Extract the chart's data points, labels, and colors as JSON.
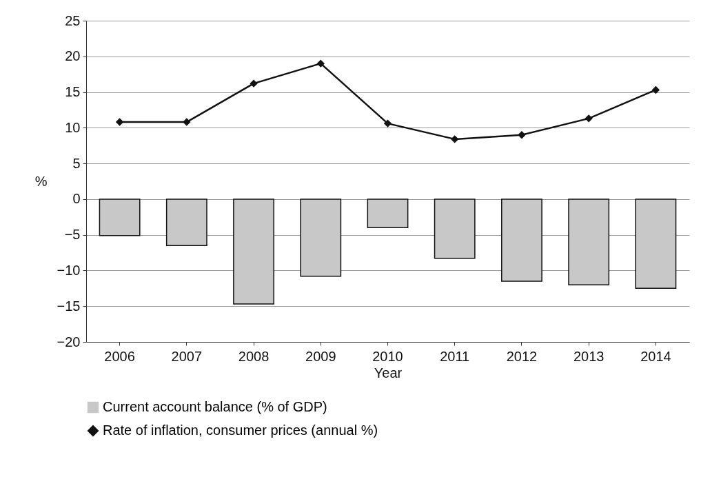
{
  "chart_data": {
    "type": "bar",
    "xlabel": "Year",
    "ylabel": "%",
    "categories": [
      "2006",
      "2007",
      "2008",
      "2009",
      "2010",
      "2011",
      "2012",
      "2013",
      "2014"
    ],
    "series": [
      {
        "name": "Current account balance (% of GDP)",
        "color": "#c8c8c8",
        "values": [
          -5.1,
          -6.5,
          -14.7,
          -10.8,
          -4.0,
          -8.3,
          -11.5,
          -12.0,
          -12.5
        ]
      },
      {
        "name": "Rate of inflation, consumer prices (annual %)",
        "type": "line",
        "color": "#111111",
        "values": [
          10.8,
          10.8,
          16.2,
          19.0,
          10.6,
          8.4,
          9.0,
          11.3,
          15.3
        ]
      }
    ],
    "ylim": [
      -20,
      25
    ],
    "yticks": [
      -20,
      -15,
      -10,
      -5,
      0,
      5,
      10,
      15,
      20,
      25
    ],
    "grid": "y",
    "legend": "bottom",
    "marker": "diamond",
    "line_style": "solid"
  }
}
